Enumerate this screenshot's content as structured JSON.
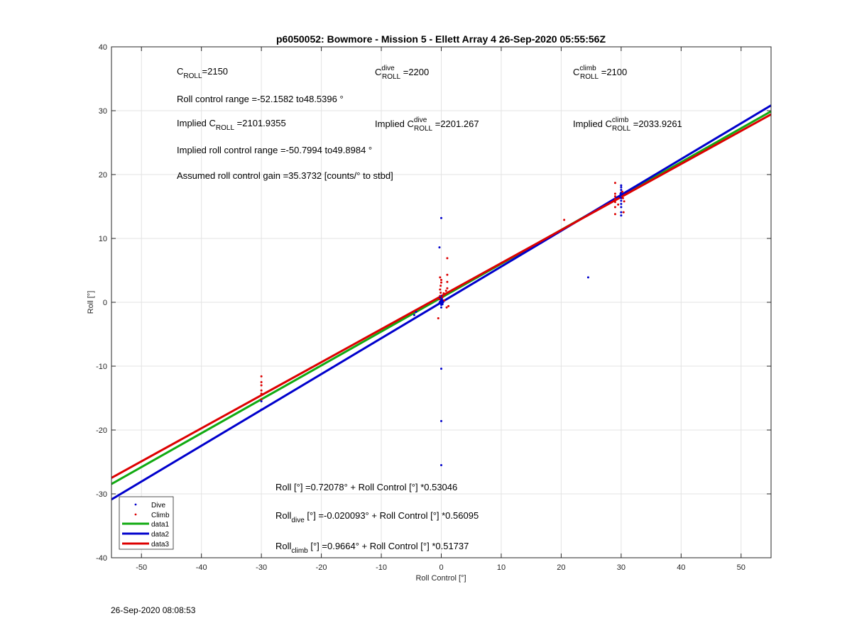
{
  "footer": {
    "timestamp": "26-Sep-2020 08:08:53"
  },
  "colors": {
    "dive": "#0000cc",
    "climb": "#dd0000",
    "data1": "#11aa11",
    "data2": "#0000cc",
    "data3": "#dd0000",
    "grid": "#e3e3e3"
  },
  "annotations": {
    "c_roll": {
      "base": "C",
      "sub": "ROLL",
      "value": "=2150"
    },
    "c_roll_dive": {
      "base": "C",
      "sup": "dive",
      "sub": "ROLL",
      "value": " =2200"
    },
    "c_roll_climb": {
      "base": "C",
      "sup": "climb",
      "sub": "ROLL",
      "value": " =2100"
    },
    "roll_range": "Roll control range =-52.1582 to48.5396 °",
    "implied_c_roll": {
      "prefix": "Implied C",
      "sub": "ROLL",
      "value": " =2101.9355"
    },
    "implied_c_roll_dive": {
      "prefix": "Implied C",
      "sup": "dive",
      "sub": "ROLL",
      "value": " =2201.267"
    },
    "implied_c_roll_climb": {
      "prefix": "Implied C",
      "sup": "climb",
      "sub": "ROLL",
      "value": " =2033.9261"
    },
    "implied_range": "Implied roll control range =-50.7994 to49.8984 °",
    "gain": "Assumed roll control gain =35.3732 [counts/° to stbd]",
    "fit_all": {
      "prefix": "Roll [°] =0.72078° + Roll Control [°] *0.53046"
    },
    "fit_dive": {
      "base": "Roll",
      "sub": "dive",
      "rest": " [°] =-0.020093° + Roll Control [°] *0.56095"
    },
    "fit_climb": {
      "base": "Roll",
      "sub": "climb",
      "rest": " [°] =0.9664° + Roll Control [°] *0.51737"
    }
  },
  "chart_data": {
    "type": "scatter",
    "title": "p6050052: Bowmore - Mission 5 - Ellett Array 4 26-Sep-2020 05:55:56Z",
    "xlabel": "Roll Control [°]",
    "ylabel": "Roll [°]",
    "xlim": [
      -55,
      55
    ],
    "ylim": [
      -40,
      40
    ],
    "xticks": [
      -50,
      -40,
      -30,
      -20,
      -10,
      0,
      10,
      20,
      30,
      40,
      50
    ],
    "yticks": [
      -40,
      -30,
      -20,
      -10,
      0,
      10,
      20,
      30,
      40
    ],
    "grid": true,
    "legend_position": "bottom-left",
    "series": [
      {
        "name": "Dive",
        "kind": "points",
        "color": "#0000cc",
        "points": [
          [
            -30,
            -16.8
          ],
          [
            -30,
            -15.5
          ],
          [
            -4.5,
            -2.0
          ],
          [
            -4.2,
            -1.5
          ],
          [
            -0.3,
            8.6
          ],
          [
            0,
            13.2
          ],
          [
            0,
            -10.4
          ],
          [
            0,
            -18.6
          ],
          [
            0,
            -25.5
          ],
          [
            -0.2,
            0.1
          ],
          [
            0,
            0.2
          ],
          [
            0.1,
            -0.2
          ],
          [
            -0.1,
            0.4
          ],
          [
            0.2,
            0.3
          ],
          [
            0,
            -0.4
          ],
          [
            -0.3,
            -0.1
          ],
          [
            0.1,
            0.6
          ],
          [
            0,
            -0.8
          ],
          [
            0.2,
            -0.3
          ],
          [
            -0.2,
            0.8
          ],
          [
            0,
            1.0
          ],
          [
            0.3,
            0.0
          ],
          [
            24.5,
            3.9
          ],
          [
            30,
            13.6
          ],
          [
            30,
            14.1
          ],
          [
            30,
            14.9
          ],
          [
            30,
            15.4
          ],
          [
            30,
            15.9
          ],
          [
            30,
            16.3
          ],
          [
            30,
            16.8
          ],
          [
            30,
            17.2
          ],
          [
            30,
            17.6
          ],
          [
            30,
            18.0
          ],
          [
            30,
            18.3
          ],
          [
            29.8,
            16.5
          ],
          [
            29.9,
            17.0
          ]
        ]
      },
      {
        "name": "Climb",
        "kind": "points",
        "color": "#dd0000",
        "points": [
          [
            -30,
            -11.6
          ],
          [
            -30,
            -12.5
          ],
          [
            -30,
            -13.0
          ],
          [
            -30,
            -13.8
          ],
          [
            -30,
            -14.3
          ],
          [
            -30,
            -15.2
          ],
          [
            -0.5,
            -2.5
          ],
          [
            -0.3,
            0.5
          ],
          [
            -0.2,
            1.0
          ],
          [
            -0.1,
            1.5
          ],
          [
            -0.2,
            2.0
          ],
          [
            -0.1,
            2.6
          ],
          [
            0,
            3.1
          ],
          [
            0,
            3.5
          ],
          [
            -0.2,
            3.9
          ],
          [
            0.5,
            0.3
          ],
          [
            0.6,
            1.2
          ],
          [
            0.8,
            1.8
          ],
          [
            1.0,
            2.2
          ],
          [
            1.0,
            3.2
          ],
          [
            1.0,
            4.3
          ],
          [
            1.0,
            6.9
          ],
          [
            1.2,
            -0.6
          ],
          [
            0.9,
            -0.8
          ],
          [
            0.2,
            0.8
          ],
          [
            0.4,
            1.4
          ],
          [
            20.5,
            12.9
          ],
          [
            29,
            13.8
          ],
          [
            29,
            14.9
          ],
          [
            29,
            15.7
          ],
          [
            29,
            16.2
          ],
          [
            29,
            16.6
          ],
          [
            29,
            17.0
          ],
          [
            29,
            18.7
          ],
          [
            29.5,
            15.3
          ],
          [
            30.3,
            16.3
          ],
          [
            30.5,
            15.8
          ],
          [
            30.2,
            17.3
          ],
          [
            30.4,
            14.1
          ]
        ]
      },
      {
        "name": "data1",
        "kind": "line",
        "color": "#11aa11",
        "intercept": 0.72078,
        "slope": 0.53046
      },
      {
        "name": "data2",
        "kind": "line",
        "color": "#0000cc",
        "intercept": -0.020093,
        "slope": 0.56095
      },
      {
        "name": "data3",
        "kind": "line",
        "color": "#dd0000",
        "intercept": 0.9664,
        "slope": 0.51737
      }
    ]
  }
}
